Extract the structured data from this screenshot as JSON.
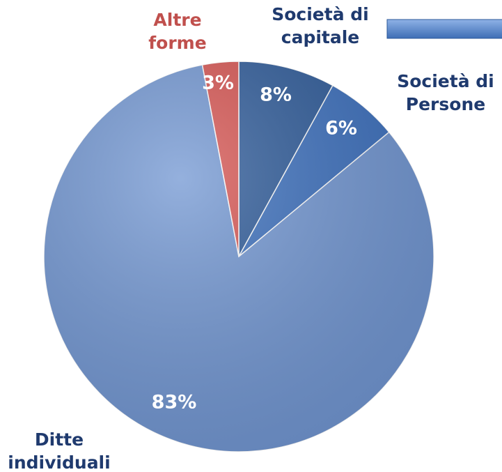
{
  "chart_data": {
    "type": "pie",
    "categories": [
      "Società di\ncapitale",
      "Società di\nPersone",
      "Ditte\nindividuali",
      "Altre\nforme"
    ],
    "values": [
      8,
      6,
      83,
      3
    ],
    "value_labels": [
      "8%",
      "6%",
      "83%",
      "3%"
    ],
    "colors": [
      "#2d5a99",
      "#3b6fbd",
      "#7196d2",
      "#d65350"
    ]
  }
}
